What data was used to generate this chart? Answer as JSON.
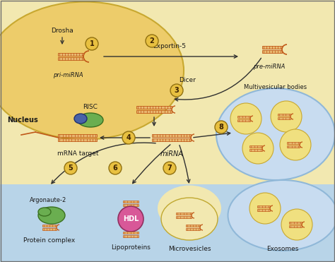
{
  "cell_bg": "#F2E8B0",
  "nucleus_color": "#EDCC6A",
  "nucleus_border": "#C8A830",
  "extracell_bg": "#B8D4E8",
  "mvb_bg": "#C8DCF0",
  "mvb_border": "#90B8D8",
  "vesicle_fill": "#F0E080",
  "vesicle_border": "#C8A830",
  "rna_fill": "#E8B870",
  "rna_edge": "#C05818",
  "step_fill": "#E8C040",
  "step_border": "#907010",
  "risc_green": "#6AAE50",
  "risc_blue": "#4862A8",
  "hdl_pink": "#D85898",
  "green_protein": "#6AAE50",
  "arrow_color": "#303030",
  "text_color": "#1A1A1A",
  "labels": {
    "drosha": "Drosha",
    "exportin5": "Exportin-5",
    "dicer": "Dicer",
    "nucleus": "Nucleus",
    "risc": "RISC",
    "mrna": "mRNA target",
    "mirna": "miRNA",
    "pri_mirna": "pri-miRNA",
    "pre_mirna": "pre-miRNA",
    "multivesicular": "Multivesicular bodies",
    "argonaute": "Argonaute-2",
    "protein": "Protein complex",
    "lipoproteins": "Lipoproteins",
    "hdl": "HDL",
    "microvesicles": "Microvesicles",
    "exosomes": "Exosomes"
  }
}
